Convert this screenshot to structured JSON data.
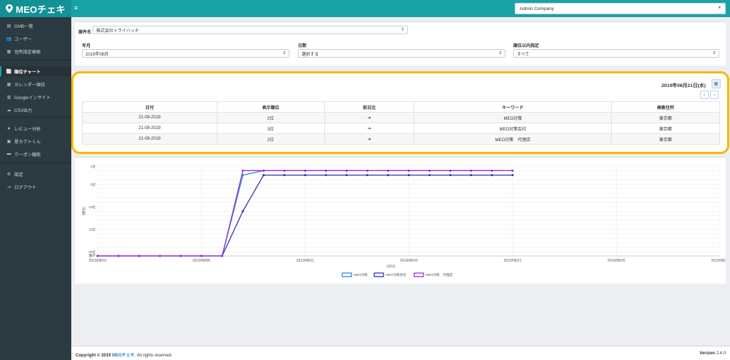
{
  "brand": {
    "name": "MEOチェキ"
  },
  "header": {
    "company": "Admin Company"
  },
  "sidebar": {
    "groups": [
      [
        {
          "label": "GMB一覧",
          "icon": "store-icon"
        },
        {
          "label": "ユーザー",
          "icon": "users-icon"
        },
        {
          "label": "住所指定検索",
          "icon": "list-icon"
        }
      ],
      [
        {
          "label": "順位チャート",
          "icon": "line-chart-icon",
          "active": true
        },
        {
          "label": "カレンダー順位",
          "icon": "calendar-icon"
        },
        {
          "label": "Googleインサイト",
          "icon": "bar-chart-icon"
        },
        {
          "label": "CSV出力",
          "icon": "cloud-download-icon"
        }
      ],
      [
        {
          "label": "レビュー分析",
          "icon": "star-icon"
        },
        {
          "label": "星カクトくん",
          "icon": "star-box-icon"
        },
        {
          "label": "クーポン機能",
          "icon": "ticket-icon"
        }
      ],
      [
        {
          "label": "設定",
          "icon": "gear-icon"
        },
        {
          "label": "ログアウト",
          "icon": "logout-icon"
        }
      ]
    ]
  },
  "filters": {
    "project_label": "案件名",
    "project_value": "株式会社トライハッチ",
    "month_label": "年月",
    "month_value": "2019年08月",
    "days_label": "日数",
    "days_value": "選択する",
    "rank_label": "順位以内指定",
    "rank_value": "すべて"
  },
  "ranking": {
    "date_title": "2019年08月21日(水)",
    "columns": [
      "日付",
      "表示順位",
      "前日比",
      "キーワード",
      "検索住所"
    ],
    "rows": [
      [
        "21-08-2019",
        "2位",
        "➔",
        "MEO対策",
        "東京都"
      ],
      [
        "21-08-2019",
        "3位",
        "➔",
        "MEO対策会社",
        "東京都"
      ],
      [
        "21-08-2019",
        "2位",
        "➔",
        "MEO対策　代理店",
        "東京都"
      ]
    ]
  },
  "chart_data": {
    "type": "line",
    "ylabel": "(順位)",
    "xlabel": "(日付)",
    "y_ticks": [
      "1位",
      "5位",
      "10位",
      "15位",
      "20位",
      "圏外"
    ],
    "x_ticks": [
      "2019/08/01",
      "2019/08/06",
      "2019/08/11",
      "2019/08/16",
      "2019/08/21",
      "2019/08/26",
      "2019/08/31"
    ],
    "x": [
      "2019/08/01",
      "2019/08/02",
      "2019/08/03",
      "2019/08/04",
      "2019/08/05",
      "2019/08/06",
      "2019/08/07",
      "2019/08/08",
      "2019/08/09",
      "2019/08/10",
      "2019/08/11",
      "2019/08/12",
      "2019/08/13",
      "2019/08/14",
      "2019/08/15",
      "2019/08/16",
      "2019/08/17",
      "2019/08/18",
      "2019/08/19",
      "2019/08/20",
      "2019/08/21"
    ],
    "series": [
      {
        "name": "MEO対策",
        "color": "#2e86de",
        "values": [
          null,
          null,
          null,
          null,
          null,
          null,
          null,
          3,
          2,
          2,
          2,
          2,
          2,
          2,
          2,
          2,
          2,
          2,
          2,
          2,
          2
        ]
      },
      {
        "name": "MEO対策会社",
        "color": "#2c2fb8",
        "values": [
          null,
          null,
          null,
          null,
          null,
          null,
          null,
          11,
          3,
          3,
          3,
          3,
          3,
          3,
          3,
          3,
          3,
          3,
          3,
          3,
          3
        ]
      },
      {
        "name": "MEO対策　代理店",
        "color": "#9b30d9",
        "values": [
          null,
          null,
          null,
          null,
          null,
          null,
          null,
          2,
          2,
          2,
          2,
          2,
          2,
          2,
          2,
          2,
          2,
          2,
          2,
          2,
          2
        ]
      }
    ],
    "out_of_rank_label": "圏外",
    "grid": true,
    "legend_position": "bottom"
  },
  "footer": {
    "copyright_prefix": "Copyright © 2019 ",
    "copyright_brand": "MEOチェキ",
    "copyright_suffix": ". All rights reserved.",
    "version_label": "Version",
    "version_value": "2.4.0"
  }
}
